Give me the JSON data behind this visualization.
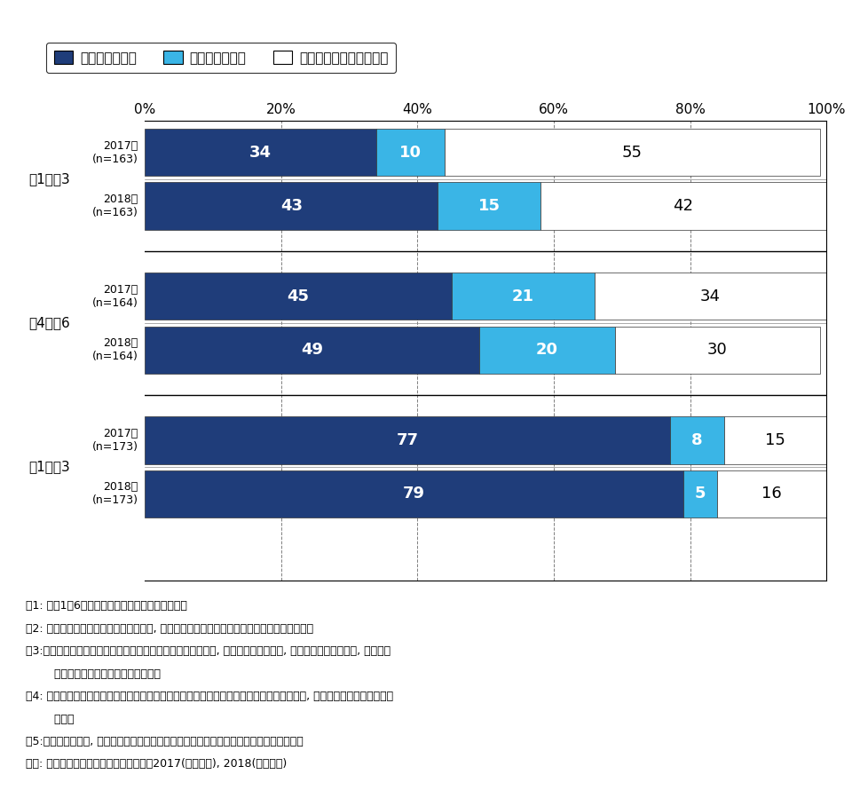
{
  "legend_items": [
    "スマートフォン",
    "従来のケータイ",
    "スマホ・ケータイ未所有"
  ],
  "colors": [
    "#1f3d7a",
    "#3ab5e6",
    "#ffffff"
  ],
  "bar_edge_color": "#333333",
  "groups": [
    {
      "group_label": "小1～小3",
      "bars": [
        {
          "label": "2017年\n(n=163)",
          "values": [
            34,
            10,
            55
          ]
        },
        {
          "label": "2018年\n(n=163)",
          "values": [
            43,
            15,
            42
          ]
        }
      ]
    },
    {
      "group_label": "小4～小6",
      "bars": [
        {
          "label": "2017年\n(n=164)",
          "values": [
            45,
            21,
            34
          ]
        },
        {
          "label": "2018年\n(n=164)",
          "values": [
            49,
            20,
            30
          ]
        }
      ]
    },
    {
      "group_label": "中1～中3",
      "bars": [
        {
          "label": "2017年\n(n=173)",
          "values": [
            77,
            8,
            15
          ]
        },
        {
          "label": "2018年\n(n=173)",
          "values": [
            79,
            5,
            16
          ]
        }
      ]
    }
  ],
  "xlim": [
    0,
    100
  ],
  "xticks": [
    0,
    20,
    40,
    60,
    80,
    100
  ],
  "xtick_labels": [
    "0%",
    "20%",
    "40%",
    "60%",
    "80%",
    "100%"
  ],
  "footnotes": [
    "注1: 関東1都6県在住の小中学生の保護者が回答。",
    "注2: 家族などで共有しているものを含め, 子どもが利用している機器の有無を保護者が回答。",
    "注3:「スマートフォン」は回線契約をしているスマートフォン, いわゆる格安スマホ, キッズスマートフォン, 回線契約",
    "        なしのスマートフォンを含み集計。",
    "注4: スマートフォンとキッズケータイ・フィーチャーフォンをどちらも利用している場合は, スマートフォン利用として",
    "        集計。",
    "注5:「ケータイ」は, スマートフォン以外のフィーチャーフォンやキッズケータイをさす。",
    "出所: 子どものケータイ利用に関する調査2017(訪問面接), 2018(訪問留置)"
  ],
  "value_label_fontsize": 13,
  "axis_label_fontsize": 11,
  "group_label_fontsize": 11,
  "bar_label_fontsize": 9,
  "legend_fontsize": 11,
  "footnote_fontsize": 9
}
